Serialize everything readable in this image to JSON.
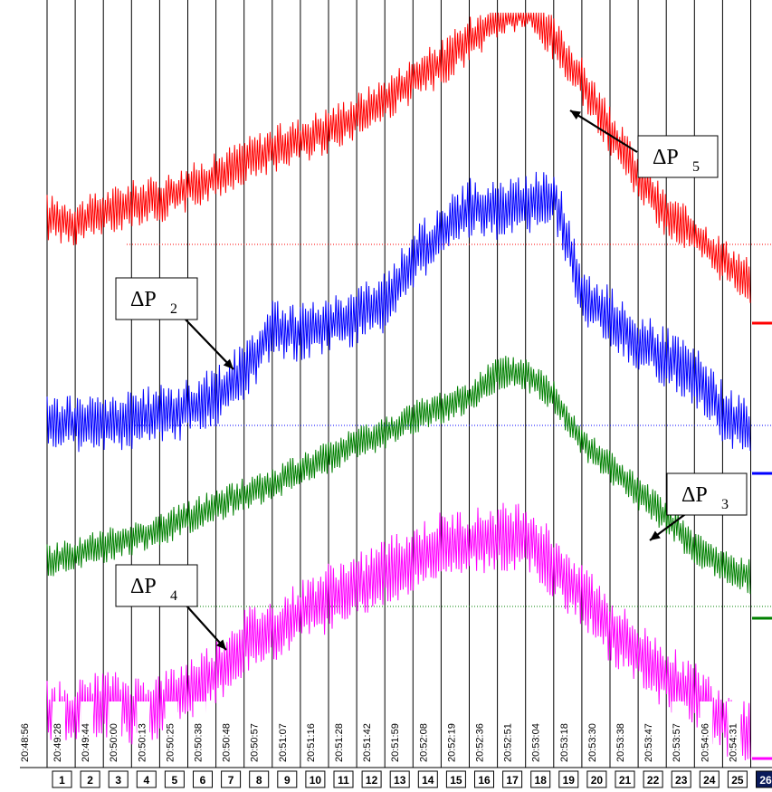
{
  "chart_data": {
    "type": "line",
    "title": "",
    "xlabel": "",
    "ylabel": "",
    "segments": [
      "1",
      "2",
      "3",
      "4",
      "5",
      "6",
      "7",
      "8",
      "9",
      "10",
      "11",
      "12",
      "13",
      "14",
      "15",
      "16",
      "17",
      "18",
      "19",
      "20",
      "21",
      "22",
      "23",
      "24",
      "25",
      "26"
    ],
    "active_segment": "26",
    "timestamps": [
      "20:48:56",
      "20:49:28",
      "20:49:44",
      "20:50:00",
      "20:50:13",
      "20:50:25",
      "20:50:38",
      "20:50:48",
      "20:50:57",
      "20:51:07",
      "20:51:16",
      "20:51:28",
      "20:51:42",
      "20:51:59",
      "20:52:08",
      "20:52:19",
      "20:52:36",
      "20:52:51",
      "20:53:04",
      "20:53:18",
      "20:53:30",
      "20:53:38",
      "20:53:47",
      "20:53:57",
      "20:54:06",
      "20:54:31"
    ],
    "series": [
      {
        "name": "ΔP5",
        "color": "#ff0000",
        "baseline": 270,
        "amplitude": 22,
        "values": [
          240,
          247,
          235,
          225,
          220,
          208,
          195,
          178,
          165,
          155,
          143,
          128,
          110,
          88,
          70,
          45,
          18,
          8,
          45,
          90,
          145,
          195,
          238,
          260,
          288,
          312
        ]
      },
      {
        "name": "ΔP2",
        "color": "#0000ff",
        "baseline": 470,
        "amplitude": 28,
        "values": [
          470,
          468,
          470,
          464,
          458,
          452,
          438,
          410,
          365,
          368,
          360,
          348,
          335,
          285,
          258,
          230,
          232,
          225,
          215,
          325,
          350,
          378,
          395,
          415,
          455,
          478
        ]
      },
      {
        "name": "ΔP3",
        "color": "#008000",
        "baseline": 670,
        "amplitude": 16,
        "values": [
          620,
          612,
          603,
          595,
          585,
          572,
          558,
          546,
          535,
          520,
          505,
          490,
          478,
          462,
          450,
          438,
          412,
          412,
          438,
          488,
          515,
          545,
          572,
          605,
          625,
          638
        ]
      },
      {
        "name": "ΔP4",
        "color": "#ff00ff",
        "baseline": null,
        "amplitude": 32,
        "values": [
          790,
          790,
          778,
          785,
          782,
          765,
          745,
          710,
          700,
          680,
          660,
          650,
          632,
          618,
          604,
          600,
          595,
          590,
          625,
          655,
          695,
          725,
          748,
          770,
          795,
          812
        ]
      }
    ],
    "callouts": [
      {
        "base": "ΔP",
        "sub": "5"
      },
      {
        "base": "ΔP",
        "sub": "2"
      },
      {
        "base": "ΔP",
        "sub": "3"
      },
      {
        "base": "ΔP",
        "sub": "4"
      }
    ]
  }
}
